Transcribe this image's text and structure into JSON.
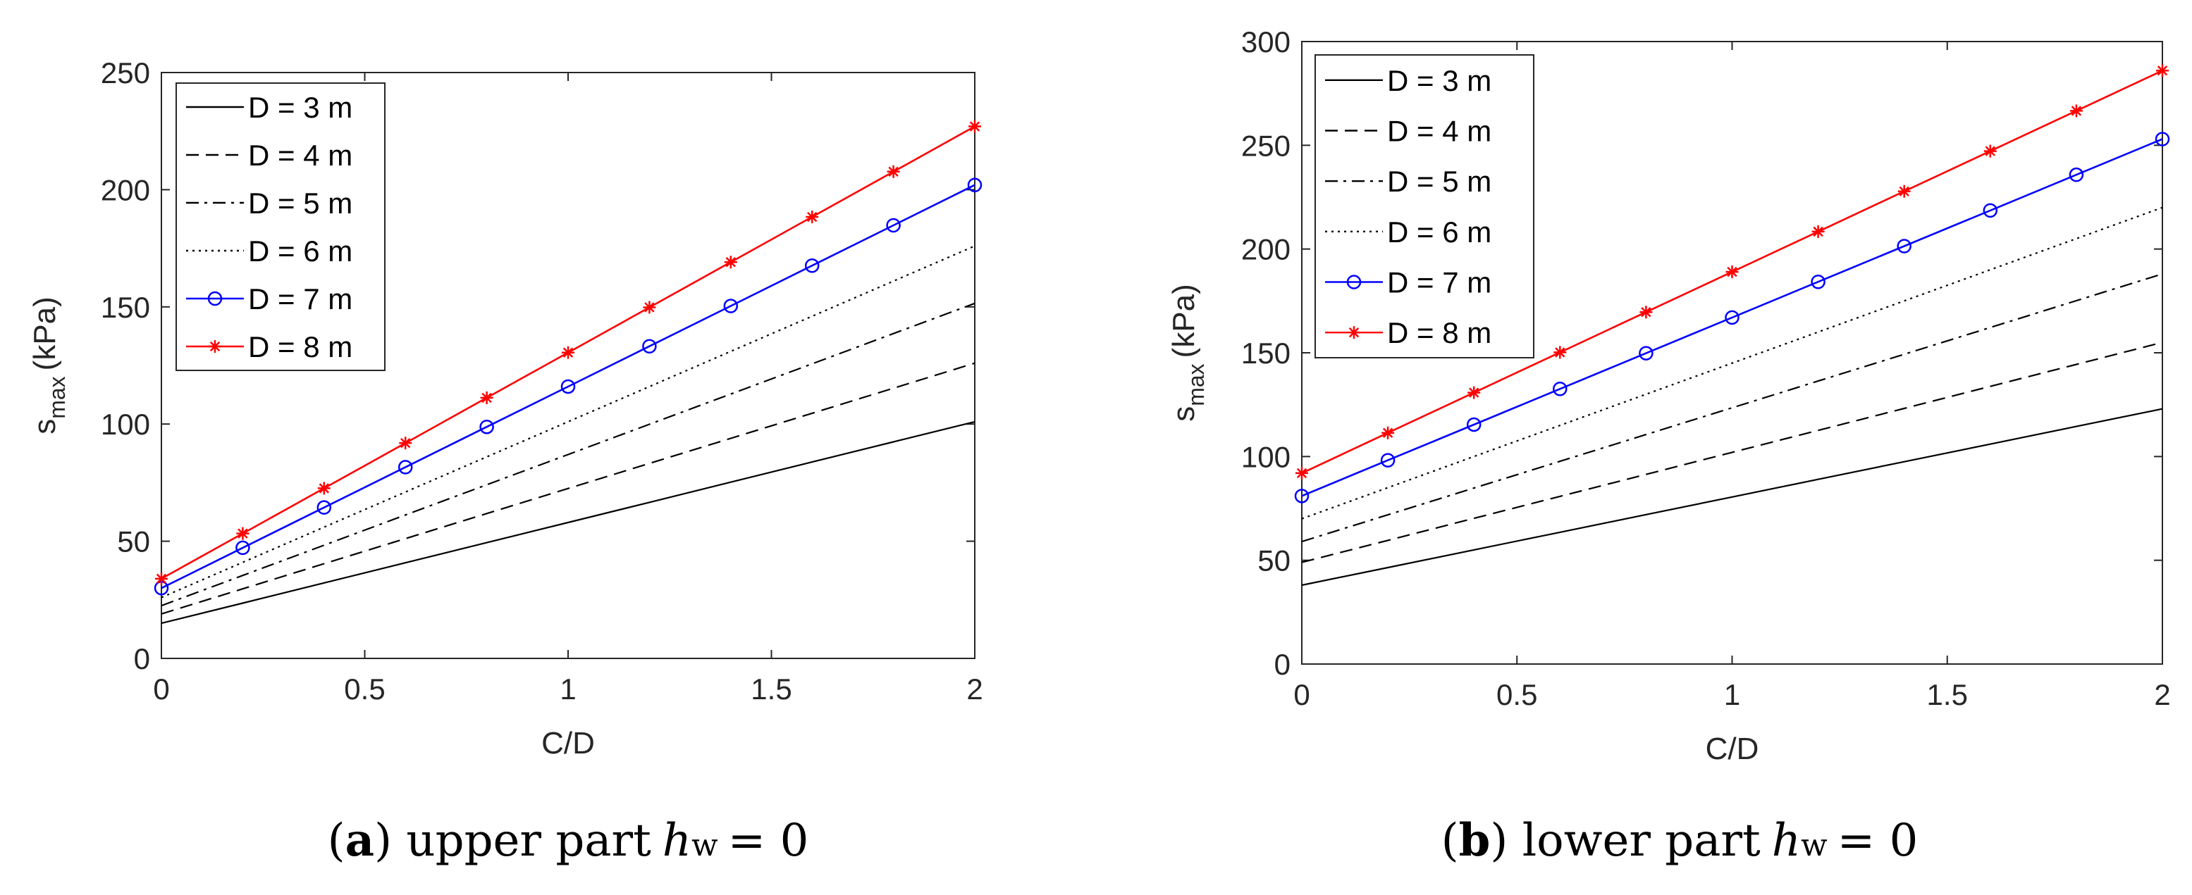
{
  "chart_data": [
    {
      "type": "line",
      "panel_letter": "a",
      "caption_text": "upper part",
      "caption_var": "h",
      "caption_sub": "w",
      "caption_eq": "= 0",
      "xlabel": "C/D",
      "ylabel": "s",
      "ylabel_sub": "max",
      "ylabel_unit": "(kPa)",
      "xlim": [
        0,
        2
      ],
      "ylim": [
        0,
        250
      ],
      "xticks": [
        0,
        0.5,
        1,
        1.5,
        2
      ],
      "xtick_labels": [
        "0",
        "0.5",
        "1",
        "1.5",
        "2"
      ],
      "yticks": [
        0,
        50,
        100,
        150,
        200,
        250
      ],
      "ytick_labels": [
        "0",
        "50",
        "100",
        "150",
        "200",
        "250"
      ],
      "legend_position": "top-left",
      "x": [
        0,
        0.2,
        0.4,
        0.6,
        0.8,
        1.0,
        1.2,
        1.4,
        1.6,
        1.8,
        2.0
      ],
      "series": [
        {
          "name": "D = 3 m",
          "style": "solid",
          "color": "#000000",
          "marker": "none",
          "values": [
            15,
            23.6,
            32.2,
            40.8,
            49.4,
            58,
            66.6,
            75.2,
            83.8,
            92.4,
            101
          ]
        },
        {
          "name": "D = 4 m",
          "style": "dashed",
          "color": "#000000",
          "marker": "none",
          "values": [
            19,
            29.7,
            40.4,
            51.1,
            61.8,
            72.5,
            83.2,
            93.9,
            104.6,
            115.3,
            126
          ]
        },
        {
          "name": "D = 5 m",
          "style": "dashdot",
          "color": "#000000",
          "marker": "none",
          "values": [
            22.5,
            35.4,
            48.3,
            61.2,
            74.1,
            87,
            99.9,
            112.8,
            125.7,
            138.6,
            151.5
          ]
        },
        {
          "name": "D = 6 m",
          "style": "dotted",
          "color": "#000000",
          "marker": "none",
          "values": [
            26,
            41,
            56,
            71,
            86,
            101,
            116,
            131,
            146,
            161,
            176
          ]
        },
        {
          "name": "D = 7 m",
          "style": "solid",
          "color": "#0000ff",
          "marker": "circle",
          "values": [
            30,
            47.2,
            64.4,
            81.6,
            98.8,
            116,
            133.2,
            150.4,
            167.6,
            184.8,
            202
          ]
        },
        {
          "name": "D = 8 m",
          "style": "solid",
          "color": "#ff0000",
          "marker": "star",
          "values": [
            34,
            53.3,
            72.6,
            91.9,
            111.2,
            130.5,
            149.8,
            169.1,
            188.4,
            207.7,
            227
          ]
        }
      ]
    },
    {
      "type": "line",
      "panel_letter": "b",
      "caption_text": "lower part",
      "caption_var": "h",
      "caption_sub": "w",
      "caption_eq": "= 0",
      "xlabel": "C/D",
      "ylabel": "s",
      "ylabel_sub": "max",
      "ylabel_unit": "(kPa)",
      "xlim": [
        0,
        2
      ],
      "ylim": [
        0,
        300
      ],
      "xticks": [
        0,
        0.5,
        1,
        1.5,
        2
      ],
      "xtick_labels": [
        "0",
        "0.5",
        "1",
        "1.5",
        "2"
      ],
      "yticks": [
        0,
        50,
        100,
        150,
        200,
        250,
        300
      ],
      "ytick_labels": [
        "0",
        "50",
        "100",
        "150",
        "200",
        "250",
        "300"
      ],
      "legend_position": "top-left",
      "x": [
        0,
        0.2,
        0.4,
        0.6,
        0.8,
        1.0,
        1.2,
        1.4,
        1.6,
        1.8,
        2.0
      ],
      "series": [
        {
          "name": "D = 3 m",
          "style": "solid",
          "color": "#000000",
          "marker": "none",
          "values": [
            38,
            46.5,
            55,
            63.5,
            72,
            80.5,
            89,
            97.5,
            106,
            114.5,
            123
          ]
        },
        {
          "name": "D = 4 m",
          "style": "dashed",
          "color": "#000000",
          "marker": "none",
          "values": [
            49,
            59.6,
            70.2,
            80.8,
            91.4,
            102,
            112.6,
            123.2,
            133.8,
            144.4,
            155
          ]
        },
        {
          "name": "D = 5 m",
          "style": "dashdot",
          "color": "#000000",
          "marker": "none",
          "values": [
            59,
            71.9,
            84.8,
            97.7,
            110.6,
            123.5,
            136.4,
            149.3,
            162.2,
            175.1,
            188
          ]
        },
        {
          "name": "D = 6 m",
          "style": "dotted",
          "color": "#000000",
          "marker": "none",
          "values": [
            70,
            85,
            100,
            115,
            130,
            145,
            160,
            175,
            190,
            205,
            220
          ]
        },
        {
          "name": "D = 7 m",
          "style": "solid",
          "color": "#0000ff",
          "marker": "circle",
          "values": [
            81,
            98.2,
            115.4,
            132.6,
            149.8,
            167,
            184.2,
            201.4,
            218.6,
            235.8,
            253
          ]
        },
        {
          "name": "D = 8 m",
          "style": "solid",
          "color": "#ff0000",
          "marker": "star",
          "values": [
            92,
            111.4,
            130.8,
            150.2,
            169.6,
            189,
            208.4,
            227.8,
            247.2,
            266.6,
            286
          ]
        }
      ]
    }
  ]
}
